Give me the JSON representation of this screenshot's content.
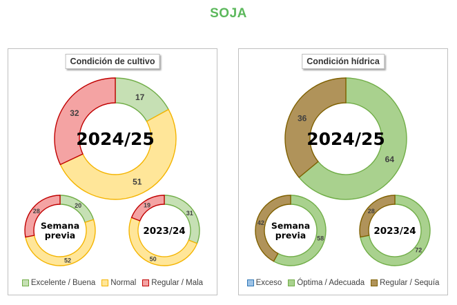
{
  "title": "SOJA",
  "chart_data": [
    {
      "type": "donut",
      "panel_title": "Condición de cultivo",
      "legend": [
        "Excelente / Buena",
        "Normal",
        "Regular / Mala"
      ],
      "colors": {
        "fill": [
          "#c6e0b4",
          "#ffe699",
          "#f4a3a3"
        ],
        "stroke": [
          "#70ad47",
          "#f4b400",
          "#c00000"
        ]
      },
      "rings": [
        {
          "label": "2024/25",
          "values": [
            17,
            51,
            32
          ]
        },
        {
          "label": "Semana previa",
          "values": [
            20,
            52,
            28
          ]
        },
        {
          "label": "2023/24",
          "values": [
            31,
            50,
            19
          ]
        }
      ]
    },
    {
      "type": "donut",
      "panel_title": "Condición hídrica",
      "legend": [
        "Exceso",
        "Óptima / Adecuada",
        "Regular / Sequía"
      ],
      "colors": {
        "fill": [
          "#9dc3e6",
          "#a9d18e",
          "#b0935a"
        ],
        "stroke": [
          "#2e75b6",
          "#70ad47",
          "#7f6000"
        ]
      },
      "rings": [
        {
          "label": "2024/25",
          "values": [
            0,
            64,
            36
          ]
        },
        {
          "label": "Semana previa",
          "values": [
            0,
            58,
            42
          ]
        },
        {
          "label": "2023/24",
          "values": [
            0,
            72,
            28
          ]
        }
      ]
    }
  ]
}
